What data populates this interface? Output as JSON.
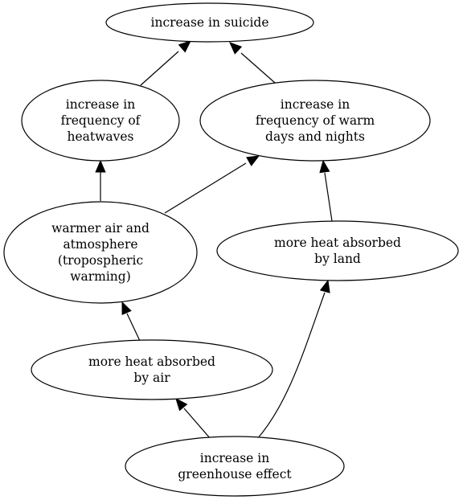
{
  "nodes": [
    {
      "id": "suicide",
      "lines": [
        "increase in suicide"
      ]
    },
    {
      "id": "heatwaves",
      "lines": [
        "increase in",
        "frequency of",
        "heatwaves"
      ]
    },
    {
      "id": "warm_days",
      "lines": [
        "increase in",
        "frequency of warm",
        "days and nights"
      ]
    },
    {
      "id": "warmer_air",
      "lines": [
        "warmer air and",
        "atmosphere",
        "(tropospheric",
        "warming)"
      ]
    },
    {
      "id": "heat_land",
      "lines": [
        "more heat absorbed",
        "by land"
      ]
    },
    {
      "id": "heat_air",
      "lines": [
        "more heat absorbed",
        "by air"
      ]
    },
    {
      "id": "greenhouse",
      "lines": [
        "increase in",
        "greenhouse effect"
      ]
    }
  ],
  "edges": [
    {
      "from": "heatwaves",
      "to": "suicide"
    },
    {
      "from": "warm_days",
      "to": "suicide"
    },
    {
      "from": "warmer_air",
      "to": "heatwaves"
    },
    {
      "from": "warmer_air",
      "to": "warm_days"
    },
    {
      "from": "heat_land",
      "to": "warm_days"
    },
    {
      "from": "heat_air",
      "to": "warmer_air"
    },
    {
      "from": "greenhouse",
      "to": "heat_air"
    },
    {
      "from": "greenhouse",
      "to": "heat_land"
    }
  ]
}
